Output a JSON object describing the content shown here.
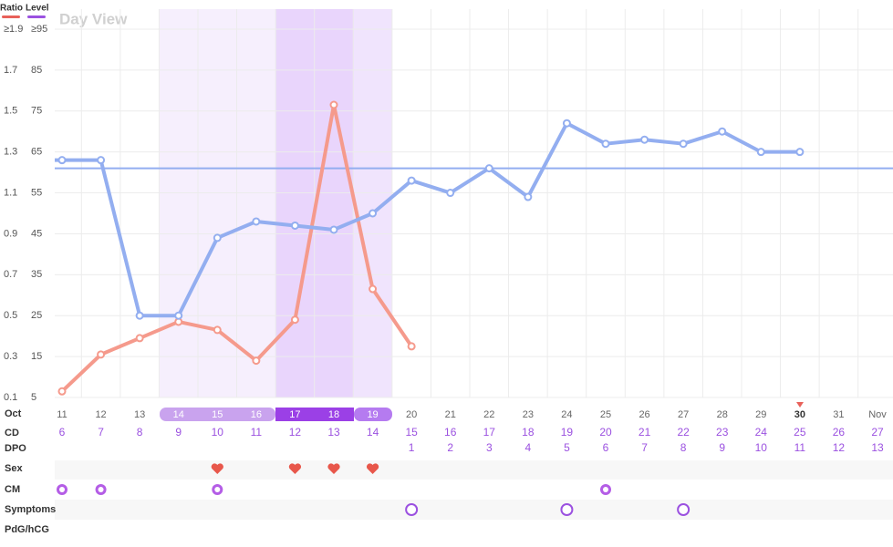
{
  "chart_data": {
    "type": "line",
    "title": "Day View",
    "categories": [
      "11",
      "12",
      "13",
      "14",
      "15",
      "16",
      "17",
      "18",
      "19",
      "20",
      "21",
      "22",
      "23",
      "24",
      "25",
      "26",
      "27",
      "28",
      "29",
      "30",
      "31",
      "Nov"
    ],
    "series": [
      {
        "name": "Ratio",
        "color": "#f59a8c",
        "legend_color": "#e8615a",
        "axis": "y2",
        "values": [
          0.13,
          0.31,
          0.39,
          0.47,
          0.43,
          0.28,
          0.48,
          1.53,
          0.63,
          0.35,
          null,
          null,
          null,
          null,
          null,
          null,
          null,
          null,
          null,
          null,
          null,
          null
        ]
      },
      {
        "name": "Level",
        "color": "#93aef0",
        "legend_color": "#9b51e0",
        "values": [
          63,
          63,
          25,
          25,
          44,
          48,
          47,
          46,
          50,
          58,
          55,
          61,
          54,
          72,
          67,
          68,
          67,
          70,
          65,
          65,
          null,
          null
        ]
      }
    ],
    "reference_line": 61,
    "ylim": [
      5,
      95
    ],
    "yticks": [
      5,
      15,
      25,
      35,
      45,
      55,
      65,
      75,
      85,
      {
        "value": 95,
        "label": "≥95"
      }
    ],
    "y2lim": [
      0.1,
      1.9
    ],
    "y2ticks": [
      0.1,
      0.3,
      0.5,
      0.7,
      0.9,
      1.1,
      1.3,
      1.5,
      1.7,
      {
        "value": 1.9,
        "label": "≥1.9"
      }
    ],
    "grid": true
  },
  "table": {
    "month": "Oct",
    "row_labels": [
      "CD",
      "DPO",
      "Sex",
      "CM",
      "Symptoms",
      "PdG/hCG"
    ],
    "cd": [
      6,
      7,
      8,
      9,
      10,
      11,
      12,
      13,
      14,
      15,
      16,
      17,
      18,
      19,
      20,
      21,
      22,
      23,
      24,
      25,
      26,
      27
    ],
    "dpo": [
      null,
      null,
      null,
      null,
      null,
      null,
      null,
      null,
      null,
      1,
      2,
      3,
      4,
      5,
      6,
      7,
      8,
      9,
      10,
      11,
      12,
      13
    ],
    "sex": [
      false,
      false,
      false,
      false,
      true,
      false,
      true,
      true,
      true,
      false,
      false,
      false,
      false,
      false,
      false,
      false,
      false,
      false,
      false,
      false,
      false,
      false
    ],
    "cm": [
      true,
      true,
      false,
      false,
      true,
      false,
      false,
      false,
      false,
      false,
      false,
      false,
      false,
      false,
      true,
      false,
      false,
      false,
      false,
      false,
      false,
      false
    ],
    "symptoms": [
      false,
      false,
      false,
      false,
      false,
      false,
      false,
      false,
      false,
      true,
      false,
      false,
      false,
      true,
      false,
      false,
      true,
      false,
      false,
      false,
      false,
      false
    ]
  }
}
